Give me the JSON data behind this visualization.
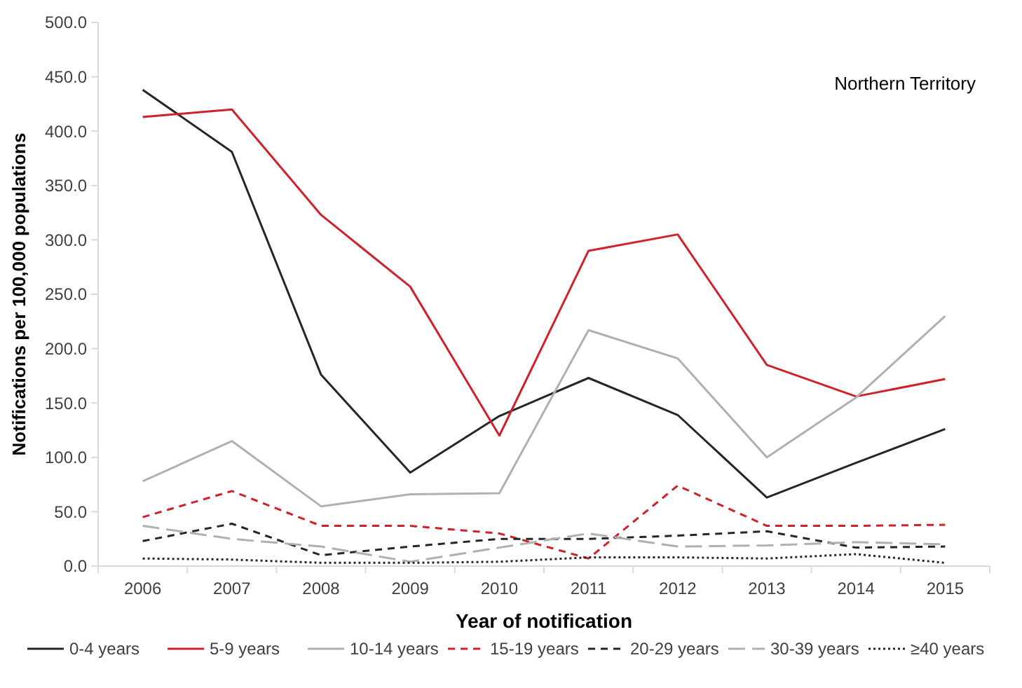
{
  "chart_data": {
    "type": "line",
    "xlabel": "Year of notification",
    "ylabel": "Notifications per 100,000 populations",
    "annotations": [
      "Northern Territory"
    ],
    "categories": [
      "2006",
      "2007",
      "2008",
      "2009",
      "2010",
      "2011",
      "2012",
      "2013",
      "2014",
      "2015"
    ],
    "ylim": [
      0,
      500
    ],
    "yticks": [
      {
        "value": 0,
        "label": "0.0"
      },
      {
        "value": 50,
        "label": "50.0"
      },
      {
        "value": 100,
        "label": "100.0"
      },
      {
        "value": 150,
        "label": "150.0"
      },
      {
        "value": 200,
        "label": "200.0"
      },
      {
        "value": 250,
        "label": "250.0"
      },
      {
        "value": 300,
        "label": "300.0"
      },
      {
        "value": 350,
        "label": "350.0"
      },
      {
        "value": 400,
        "label": "400.0"
      },
      {
        "value": 450,
        "label": "450.0"
      },
      {
        "value": 500,
        "label": "500.0"
      }
    ],
    "legend": "bottom",
    "grid": false,
    "marker": "none",
    "series": [
      {
        "name": "0-4 years",
        "color": "#262626",
        "line_style": "solid",
        "values": [
          438,
          381,
          176,
          86,
          138,
          173,
          139,
          63,
          95,
          126
        ]
      },
      {
        "name": "5-9 years",
        "color": "#d0202a",
        "line_style": "solid",
        "values": [
          413,
          420,
          323,
          257,
          120,
          290,
          305,
          185,
          156,
          172
        ]
      },
      {
        "name": "10-14 years",
        "color": "#b0b0b0",
        "line_style": "solid",
        "values": [
          78,
          115,
          55,
          66,
          67,
          217,
          191,
          100,
          155,
          230
        ]
      },
      {
        "name": "15-19 years",
        "color": "#d0202a",
        "line_style": "dashed",
        "values": [
          45,
          69,
          37,
          37,
          30,
          7,
          74,
          37,
          37,
          38
        ]
      },
      {
        "name": "20-29 years",
        "color": "#262626",
        "line_style": "dashed",
        "values": [
          23,
          39,
          10,
          18,
          25,
          25,
          28,
          32,
          17,
          18
        ]
      },
      {
        "name": "30-39 years",
        "color": "#b0b0b0",
        "line_style": "longdash",
        "values": [
          37,
          25,
          18,
          4,
          17,
          30,
          18,
          19,
          22,
          20
        ]
      },
      {
        "name": "≥40 years",
        "color": "#262626",
        "line_style": "dotted",
        "values": [
          7,
          6,
          3,
          3,
          4,
          8,
          8,
          7,
          11,
          3
        ]
      }
    ]
  }
}
